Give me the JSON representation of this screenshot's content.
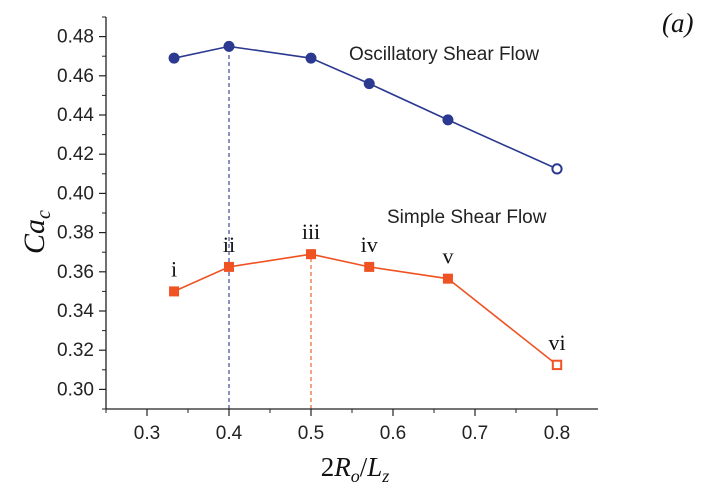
{
  "chart_data": {
    "type": "line",
    "panel_label": "(a)",
    "xlabel": {
      "main": "2",
      "var_r": "R",
      "sub_r": "o",
      "slash": "/",
      "var_l": "L",
      "sub_l": "z"
    },
    "ylabel": {
      "main": "Ca",
      "sub": "c"
    },
    "xlim": [
      0.25,
      0.85
    ],
    "ylim": [
      0.29,
      0.49
    ],
    "xticks": [
      "0.3",
      "0.4",
      "0.5",
      "0.6",
      "0.7",
      "0.8"
    ],
    "yticks": [
      "0.30",
      "0.32",
      "0.34",
      "0.36",
      "0.38",
      "0.40",
      "0.42",
      "0.44",
      "0.46",
      "0.48"
    ],
    "series": [
      {
        "name": "Oscillatory Shear Flow",
        "color": "#2b3990",
        "marker": "circle",
        "x": [
          0.333,
          0.4,
          0.5,
          0.571,
          0.667,
          0.8
        ],
        "y": [
          0.469,
          0.475,
          0.469,
          0.456,
          0.4375,
          0.4125
        ],
        "open_last": true
      },
      {
        "name": "Simple Shear Flow",
        "color": "#ef5323",
        "marker": "square",
        "x": [
          0.333,
          0.4,
          0.5,
          0.571,
          0.667,
          0.8
        ],
        "y": [
          0.35,
          0.3625,
          0.369,
          0.3625,
          0.3565,
          0.3125
        ],
        "point_labels": [
          "i",
          "ii",
          "iii",
          "iv",
          "v",
          "vi"
        ],
        "open_last": true
      }
    ],
    "vlines": [
      {
        "x": 0.4,
        "color": "#2b3990",
        "y_top": 0.475
      },
      {
        "x": 0.5,
        "color": "#ef5323",
        "y_top": 0.369
      }
    ]
  }
}
